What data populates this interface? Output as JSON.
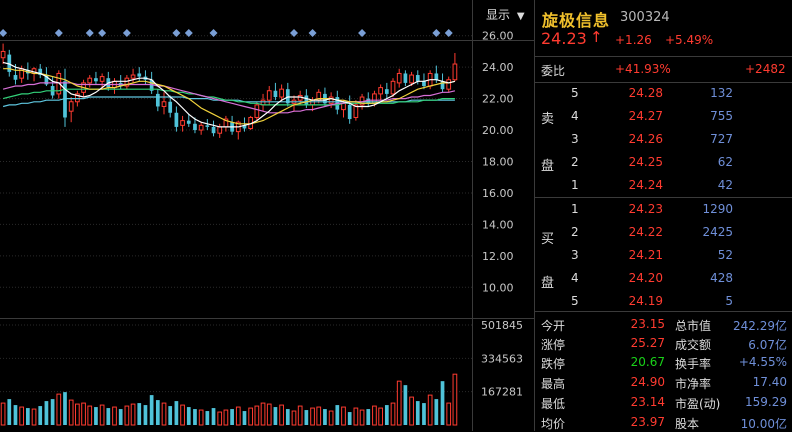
{
  "toolbar": {
    "display_label": "显示",
    "display_arrow": "▼"
  },
  "colors": {
    "up": "#ff3b30",
    "down": "#19d219",
    "volume": "#4fc3d9",
    "ma5": "#ffffff",
    "ma10": "#f2d33c",
    "ma20": "#d86fd8",
    "ma30": "#33d27a",
    "ma60": "#5fc7e0",
    "grid": "#2a2a2a",
    "axis_text": "#c8c8c8",
    "marker": "#7a9fd6"
  },
  "chart_data": {
    "type": "candlestick",
    "price_axis": {
      "ticks": [
        "26.00",
        "24.00",
        "22.00",
        "20.00",
        "18.00",
        "16.00",
        "14.00",
        "12.00",
        "10.00"
      ],
      "ylim": [
        9.0,
        27.0
      ]
    },
    "volume_axis": {
      "ticks": [
        "501845",
        "334563",
        "167281"
      ],
      "ylim": [
        0,
        501845
      ]
    },
    "candles": [
      {
        "o": 24.6,
        "h": 25.5,
        "l": 24.2,
        "c": 25.0,
        "v": 110000
      },
      {
        "o": 24.8,
        "h": 25.1,
        "l": 23.4,
        "c": 23.7,
        "v": 130000
      },
      {
        "o": 23.5,
        "h": 24.2,
        "l": 22.9,
        "c": 23.2,
        "v": 100000
      },
      {
        "o": 23.3,
        "h": 24.1,
        "l": 23.0,
        "c": 23.9,
        "v": 90000
      },
      {
        "o": 23.8,
        "h": 24.3,
        "l": 23.2,
        "c": 23.6,
        "v": 85000
      },
      {
        "o": 23.6,
        "h": 24.0,
        "l": 23.1,
        "c": 23.9,
        "v": 80000
      },
      {
        "o": 23.9,
        "h": 24.2,
        "l": 23.3,
        "c": 23.5,
        "v": 95000
      },
      {
        "o": 23.5,
        "h": 24.0,
        "l": 22.8,
        "c": 22.9,
        "v": 120000
      },
      {
        "o": 22.8,
        "h": 23.4,
        "l": 22.0,
        "c": 22.2,
        "v": 130000
      },
      {
        "o": 22.3,
        "h": 23.8,
        "l": 22.0,
        "c": 23.6,
        "v": 155000
      },
      {
        "o": 23.1,
        "h": 23.9,
        "l": 20.2,
        "c": 20.8,
        "v": 165000
      },
      {
        "o": 21.2,
        "h": 22.1,
        "l": 20.5,
        "c": 21.8,
        "v": 125000
      },
      {
        "o": 21.8,
        "h": 22.5,
        "l": 21.5,
        "c": 22.3,
        "v": 105000
      },
      {
        "o": 22.4,
        "h": 23.2,
        "l": 22.1,
        "c": 23.0,
        "v": 110000
      },
      {
        "o": 23.0,
        "h": 23.5,
        "l": 22.7,
        "c": 23.3,
        "v": 95000
      },
      {
        "o": 23.3,
        "h": 23.7,
        "l": 22.9,
        "c": 23.1,
        "v": 90000
      },
      {
        "o": 23.1,
        "h": 23.6,
        "l": 22.6,
        "c": 23.4,
        "v": 100000
      },
      {
        "o": 23.3,
        "h": 23.7,
        "l": 22.5,
        "c": 22.7,
        "v": 85000
      },
      {
        "o": 22.7,
        "h": 23.3,
        "l": 22.3,
        "c": 23.1,
        "v": 90000
      },
      {
        "o": 23.0,
        "h": 23.5,
        "l": 22.6,
        "c": 22.8,
        "v": 80000
      },
      {
        "o": 22.8,
        "h": 23.5,
        "l": 22.6,
        "c": 23.3,
        "v": 95000
      },
      {
        "o": 23.3,
        "h": 23.9,
        "l": 23.0,
        "c": 23.5,
        "v": 105000
      },
      {
        "o": 23.6,
        "h": 24.0,
        "l": 23.1,
        "c": 23.4,
        "v": 110000
      },
      {
        "o": 23.4,
        "h": 23.8,
        "l": 22.9,
        "c": 23.2,
        "v": 100000
      },
      {
        "o": 23.2,
        "h": 23.7,
        "l": 22.3,
        "c": 22.5,
        "v": 150000
      },
      {
        "o": 22.3,
        "h": 22.6,
        "l": 21.2,
        "c": 21.5,
        "v": 125000
      },
      {
        "o": 21.5,
        "h": 22.4,
        "l": 21.0,
        "c": 21.8,
        "v": 110000
      },
      {
        "o": 21.8,
        "h": 22.2,
        "l": 20.8,
        "c": 21.1,
        "v": 95000
      },
      {
        "o": 21.1,
        "h": 21.5,
        "l": 19.9,
        "c": 20.2,
        "v": 120000
      },
      {
        "o": 20.3,
        "h": 20.9,
        "l": 19.9,
        "c": 20.6,
        "v": 100000
      },
      {
        "o": 20.6,
        "h": 21.0,
        "l": 20.2,
        "c": 20.4,
        "v": 90000
      },
      {
        "o": 20.4,
        "h": 20.8,
        "l": 19.8,
        "c": 20.0,
        "v": 80000
      },
      {
        "o": 20.0,
        "h": 20.5,
        "l": 19.7,
        "c": 20.3,
        "v": 75000
      },
      {
        "o": 20.3,
        "h": 20.7,
        "l": 20.0,
        "c": 20.2,
        "v": 70000
      },
      {
        "o": 20.2,
        "h": 20.6,
        "l": 19.6,
        "c": 19.8,
        "v": 85000
      },
      {
        "o": 19.8,
        "h": 20.4,
        "l": 19.5,
        "c": 20.2,
        "v": 65000
      },
      {
        "o": 20.2,
        "h": 20.9,
        "l": 19.9,
        "c": 20.7,
        "v": 75000
      },
      {
        "o": 20.5,
        "h": 20.9,
        "l": 19.7,
        "c": 19.9,
        "v": 80000
      },
      {
        "o": 19.9,
        "h": 20.6,
        "l": 19.4,
        "c": 20.5,
        "v": 90000
      },
      {
        "o": 20.3,
        "h": 20.8,
        "l": 19.9,
        "c": 20.1,
        "v": 70000
      },
      {
        "o": 20.1,
        "h": 20.9,
        "l": 20.0,
        "c": 20.8,
        "v": 85000
      },
      {
        "o": 20.8,
        "h": 21.8,
        "l": 20.6,
        "c": 21.6,
        "v": 95000
      },
      {
        "o": 21.6,
        "h": 22.3,
        "l": 21.2,
        "c": 21.9,
        "v": 110000
      },
      {
        "o": 21.9,
        "h": 22.8,
        "l": 21.6,
        "c": 22.5,
        "v": 105000
      },
      {
        "o": 22.5,
        "h": 23.0,
        "l": 21.9,
        "c": 22.1,
        "v": 90000
      },
      {
        "o": 22.1,
        "h": 22.9,
        "l": 21.8,
        "c": 22.6,
        "v": 100000
      },
      {
        "o": 22.6,
        "h": 23.0,
        "l": 21.5,
        "c": 21.7,
        "v": 80000
      },
      {
        "o": 21.7,
        "h": 22.2,
        "l": 21.2,
        "c": 21.9,
        "v": 70000
      },
      {
        "o": 21.9,
        "h": 22.5,
        "l": 21.6,
        "c": 22.2,
        "v": 95000
      },
      {
        "o": 22.2,
        "h": 22.6,
        "l": 21.4,
        "c": 21.6,
        "v": 75000
      },
      {
        "o": 21.6,
        "h": 22.1,
        "l": 21.2,
        "c": 21.9,
        "v": 85000
      },
      {
        "o": 21.9,
        "h": 22.6,
        "l": 21.7,
        "c": 22.4,
        "v": 90000
      },
      {
        "o": 22.3,
        "h": 22.7,
        "l": 21.5,
        "c": 21.7,
        "v": 80000
      },
      {
        "o": 21.7,
        "h": 22.4,
        "l": 21.4,
        "c": 22.1,
        "v": 70000
      },
      {
        "o": 22.1,
        "h": 22.5,
        "l": 21.0,
        "c": 21.3,
        "v": 100000
      },
      {
        "o": 21.3,
        "h": 21.9,
        "l": 20.8,
        "c": 21.7,
        "v": 90000
      },
      {
        "o": 21.6,
        "h": 22.2,
        "l": 20.4,
        "c": 20.7,
        "v": 65000
      },
      {
        "o": 20.8,
        "h": 21.9,
        "l": 20.6,
        "c": 21.6,
        "v": 85000
      },
      {
        "o": 21.6,
        "h": 22.3,
        "l": 21.3,
        "c": 22.1,
        "v": 75000
      },
      {
        "o": 22.0,
        "h": 22.4,
        "l": 21.5,
        "c": 21.7,
        "v": 80000
      },
      {
        "o": 21.7,
        "h": 22.5,
        "l": 21.5,
        "c": 22.3,
        "v": 95000
      },
      {
        "o": 22.3,
        "h": 22.9,
        "l": 21.9,
        "c": 22.7,
        "v": 85000
      },
      {
        "o": 22.6,
        "h": 23.0,
        "l": 22.0,
        "c": 22.3,
        "v": 100000
      },
      {
        "o": 22.3,
        "h": 23.3,
        "l": 22.1,
        "c": 23.1,
        "v": 110000
      },
      {
        "o": 23.0,
        "h": 23.9,
        "l": 22.7,
        "c": 23.6,
        "v": 220000
      },
      {
        "o": 23.6,
        "h": 23.8,
        "l": 22.8,
        "c": 23.0,
        "v": 200000
      },
      {
        "o": 23.0,
        "h": 23.7,
        "l": 22.8,
        "c": 23.5,
        "v": 140000
      },
      {
        "o": 23.5,
        "h": 23.8,
        "l": 22.9,
        "c": 23.1,
        "v": 120000
      },
      {
        "o": 23.1,
        "h": 23.6,
        "l": 22.6,
        "c": 22.8,
        "v": 110000
      },
      {
        "o": 22.8,
        "h": 23.8,
        "l": 22.6,
        "c": 23.6,
        "v": 150000
      },
      {
        "o": 23.6,
        "h": 24.1,
        "l": 23.0,
        "c": 23.2,
        "v": 130000
      },
      {
        "o": 23.1,
        "h": 23.6,
        "l": 22.4,
        "c": 22.6,
        "v": 220000
      },
      {
        "o": 22.6,
        "h": 23.4,
        "l": 22.4,
        "c": 23.2,
        "v": 110000
      },
      {
        "o": 23.2,
        "h": 24.9,
        "l": 23.1,
        "c": 24.2,
        "v": 255000
      }
    ],
    "ma5": [
      24.3,
      24.2,
      24.0,
      23.9,
      23.8,
      23.7,
      23.6,
      23.4,
      23.1,
      23.0,
      22.6,
      22.3,
      22.2,
      22.1,
      22.2,
      22.4,
      22.7,
      23.0,
      23.1,
      23.1,
      23.1,
      23.2,
      23.3,
      23.3,
      23.2,
      22.8,
      22.5,
      22.1,
      21.8,
      21.4,
      21.0,
      20.7,
      20.5,
      20.4,
      20.3,
      20.2,
      20.2,
      20.2,
      20.2,
      20.3,
      20.4,
      20.6,
      20.9,
      21.2,
      21.6,
      21.9,
      22.1,
      22.1,
      22.1,
      22.0,
      21.9,
      21.9,
      21.9,
      22.0,
      21.9,
      21.8,
      21.7,
      21.5,
      21.5,
      21.5,
      21.6,
      21.8,
      22.0,
      22.2,
      22.5,
      22.7,
      22.9,
      23.1,
      23.1,
      23.2,
      23.2,
      23.1,
      23.0,
      23.1
    ],
    "ma10": [
      23.9,
      23.9,
      23.8,
      23.8,
      23.7,
      23.6,
      23.6,
      23.5,
      23.4,
      23.3,
      23.2,
      23.0,
      22.8,
      22.7,
      22.6,
      22.6,
      22.6,
      22.7,
      22.7,
      22.8,
      22.9,
      23.0,
      23.1,
      23.1,
      23.0,
      22.9,
      22.8,
      22.6,
      22.4,
      22.2,
      22.0,
      21.7,
      21.4,
      21.2,
      21.0,
      20.8,
      20.6,
      20.5,
      20.4,
      20.4,
      20.4,
      20.5,
      20.6,
      20.8,
      21.0,
      21.2,
      21.4,
      21.6,
      21.7,
      21.8,
      21.9,
      22.0,
      22.0,
      22.0,
      21.9,
      21.9,
      21.8,
      21.8,
      21.7,
      21.7,
      21.7,
      21.8,
      21.8,
      21.9,
      22.0,
      22.2,
      22.4,
      22.6,
      22.7,
      22.8,
      22.9,
      23.0,
      23.0,
      23.1
    ],
    "ma20": [
      22.6,
      22.7,
      22.8,
      22.8,
      22.9,
      22.9,
      23.0,
      23.0,
      23.0,
      23.0,
      23.0,
      23.0,
      22.9,
      22.9,
      22.9,
      22.9,
      22.9,
      22.9,
      22.9,
      22.9,
      22.9,
      22.9,
      22.9,
      22.9,
      22.9,
      22.8,
      22.8,
      22.7,
      22.6,
      22.5,
      22.4,
      22.3,
      22.2,
      22.1,
      22.0,
      21.9,
      21.8,
      21.7,
      21.6,
      21.5,
      21.4,
      21.3,
      21.2,
      21.1,
      21.1,
      21.1,
      21.1,
      21.2,
      21.2,
      21.3,
      21.3,
      21.4,
      21.5,
      21.6,
      21.7,
      21.7,
      21.8,
      21.8,
      21.8,
      21.9,
      21.9,
      21.9,
      21.9,
      22.0,
      22.0,
      22.0,
      22.1,
      22.1,
      22.2,
      22.2,
      22.3,
      22.4,
      22.4,
      22.5
    ],
    "ma30": [
      22.0,
      22.1,
      22.2,
      22.3,
      22.3,
      22.4,
      22.4,
      22.5,
      22.5,
      22.5,
      22.6,
      22.6,
      22.6,
      22.6,
      22.6,
      22.6,
      22.6,
      22.6,
      22.6,
      22.6,
      22.6,
      22.6,
      22.6,
      22.6,
      22.6,
      22.6,
      22.5,
      22.5,
      22.4,
      22.4,
      22.3,
      22.3,
      22.2,
      22.1,
      22.1,
      22.0,
      21.9,
      21.9,
      21.8,
      21.8,
      21.7,
      21.7,
      21.6,
      21.6,
      21.6,
      21.6,
      21.6,
      21.6,
      21.6,
      21.6,
      21.6,
      21.6,
      21.6,
      21.6,
      21.6,
      21.7,
      21.7,
      21.7,
      21.7,
      21.7,
      21.7,
      21.7,
      21.7,
      21.7,
      21.8,
      21.8,
      21.8,
      21.8,
      21.9,
      21.9,
      21.9,
      22.0,
      22.0,
      22.0
    ],
    "ma60": [
      21.5,
      21.6,
      21.6,
      21.7,
      21.7,
      21.8,
      21.8,
      21.9,
      21.9,
      21.9,
      22.0,
      22.0,
      22.0,
      22.0,
      22.1,
      22.1,
      22.1,
      22.1,
      22.1,
      22.1,
      22.1,
      22.1,
      22.1,
      22.1,
      22.1,
      22.1,
      22.1,
      22.1,
      22.1,
      22.1,
      22.0,
      22.0,
      22.0,
      22.0,
      21.9,
      21.9,
      21.9,
      21.9,
      21.9,
      21.8,
      21.8,
      21.8,
      21.8,
      21.8,
      21.8,
      21.8,
      21.8,
      21.8,
      21.8,
      21.8,
      21.8,
      21.8,
      21.8,
      21.8,
      21.8,
      21.8,
      21.8,
      21.8,
      21.8,
      21.8,
      21.8,
      21.8,
      21.8,
      21.8,
      21.8,
      21.8,
      21.9,
      21.9,
      21.9,
      21.9,
      21.9,
      21.9,
      21.9,
      21.9
    ],
    "markers_at_candle": [
      0,
      9,
      14,
      16,
      20,
      28,
      30,
      34,
      47,
      50,
      58,
      70,
      72
    ]
  },
  "quote": {
    "name": "旋极信息",
    "code": "300324",
    "price": "24.23",
    "arrow": "↑",
    "change": "+1.26",
    "pct": "+5.49%",
    "weibi_label": "委比",
    "weibi_pct": "+41.93%",
    "weicha": "+2482",
    "sell_label_1": "卖",
    "sell_label_2": "盘",
    "buy_label_1": "买",
    "buy_label_2": "盘",
    "sell": [
      {
        "lvl": "5",
        "price": "24.28",
        "vol": "132"
      },
      {
        "lvl": "4",
        "price": "24.27",
        "vol": "755"
      },
      {
        "lvl": "3",
        "price": "24.26",
        "vol": "727"
      },
      {
        "lvl": "2",
        "price": "24.25",
        "vol": "62"
      },
      {
        "lvl": "1",
        "price": "24.24",
        "vol": "42"
      }
    ],
    "buy": [
      {
        "lvl": "1",
        "price": "24.23",
        "vol": "1290"
      },
      {
        "lvl": "2",
        "price": "24.22",
        "vol": "2425"
      },
      {
        "lvl": "3",
        "price": "24.21",
        "vol": "52"
      },
      {
        "lvl": "4",
        "price": "24.20",
        "vol": "428"
      },
      {
        "lvl": "5",
        "price": "24.19",
        "vol": "5"
      }
    ],
    "stats": [
      {
        "l1": "今开",
        "v1": "23.15",
        "c1": "red",
        "l2": "总市值",
        "v2": "242.29亿",
        "c2": "blue"
      },
      {
        "l1": "涨停",
        "v1": "25.27",
        "c1": "red",
        "l2": "成交额",
        "v2": "6.07亿",
        "c2": "blue"
      },
      {
        "l1": "跌停",
        "v1": "20.67",
        "c1": "green",
        "l2": "换手率",
        "v2": "+4.55%",
        "c2": "blue"
      },
      {
        "l1": "最高",
        "v1": "24.90",
        "c1": "red",
        "l2": "市净率",
        "v2": "17.40",
        "c2": "blue"
      },
      {
        "l1": "最低",
        "v1": "23.14",
        "c1": "red",
        "l2": "市盈(动)",
        "v2": "159.29",
        "c2": "blue"
      },
      {
        "l1": "均价",
        "v1": "23.97",
        "c1": "red",
        "l2": "股本",
        "v2": "10.00亿",
        "c2": "blue"
      }
    ]
  }
}
